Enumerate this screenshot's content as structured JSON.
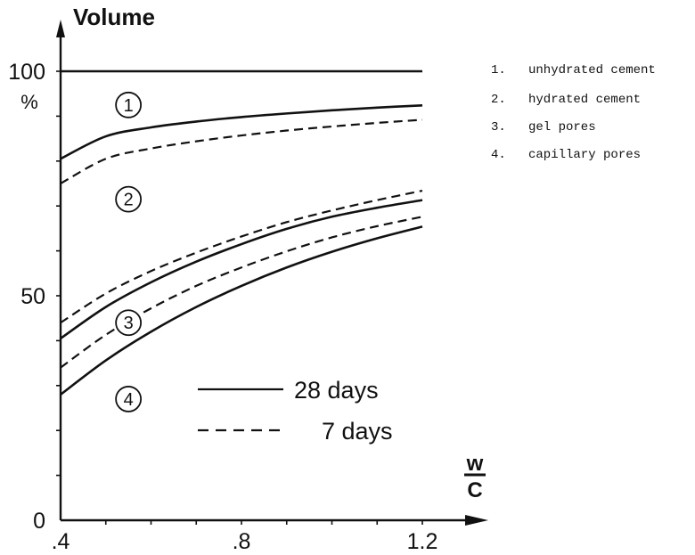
{
  "chart_data": {
    "type": "line",
    "ylabel": "Volume",
    "yunit": "%",
    "xlabel_numerator": "w",
    "xlabel_denominator": "C",
    "xlim": [
      0.4,
      1.2
    ],
    "ylim": [
      0,
      100
    ],
    "x_tick_labels": [
      ".4",
      ".8",
      "1.2"
    ],
    "y_tick_labels": [
      "0",
      "50",
      "100"
    ],
    "x": [
      0.4,
      0.5,
      0.6,
      0.7,
      0.8,
      0.9,
      1.0,
      1.1,
      1.2
    ],
    "series": [
      {
        "age": "28 days",
        "boundary": "1-2",
        "style": "solid",
        "values": [
          80.5,
          85.5,
          87.5,
          88.8,
          89.8,
          90.6,
          91.3,
          91.9,
          92.4
        ]
      },
      {
        "age": "7 days",
        "boundary": "1-2",
        "style": "dashed",
        "values": [
          75.0,
          80.5,
          82.8,
          84.4,
          85.7,
          86.8,
          87.7,
          88.5,
          89.2
        ]
      },
      {
        "age": "7 days",
        "boundary": "2-3",
        "style": "dashed",
        "values": [
          44.0,
          50.5,
          55.5,
          59.6,
          63.2,
          66.4,
          69.0,
          71.3,
          73.4
        ]
      },
      {
        "age": "28 days",
        "boundary": "2-3",
        "style": "solid",
        "values": [
          40.5,
          47.5,
          53.0,
          57.6,
          61.5,
          64.9,
          67.6,
          69.6,
          71.3
        ]
      },
      {
        "age": "7 days",
        "boundary": "3-4",
        "style": "dashed",
        "values": [
          34.0,
          41.3,
          47.2,
          52.2,
          56.3,
          59.9,
          63.0,
          65.5,
          67.6
        ]
      },
      {
        "age": "28 days",
        "boundary": "3-4",
        "style": "solid",
        "values": [
          28.0,
          35.6,
          42.0,
          47.5,
          52.2,
          56.3,
          59.8,
          62.8,
          65.4
        ]
      }
    ],
    "top_line": {
      "style": "solid",
      "value": 100
    },
    "regions": [
      {
        "marker": "1",
        "x": 0.55,
        "y": 92.5
      },
      {
        "marker": "2",
        "x": 0.55,
        "y": 71.5
      },
      {
        "marker": "3",
        "x": 0.55,
        "y": 44.0
      },
      {
        "marker": "4",
        "x": 0.55,
        "y": 27.0
      }
    ],
    "legend": [
      {
        "label": "28 days",
        "style": "solid"
      },
      {
        "label": "7 days",
        "style": "dashed"
      }
    ],
    "grid": false
  },
  "key": [
    {
      "number": "1.",
      "label": "unhydrated cement"
    },
    {
      "number": "2.",
      "label": "hydrated cement"
    },
    {
      "number": "3.",
      "label": "gel pores"
    },
    {
      "number": "4.",
      "label": "capillary pores"
    }
  ],
  "colors": {
    "ink": "#111111",
    "background": "#ffffff"
  }
}
